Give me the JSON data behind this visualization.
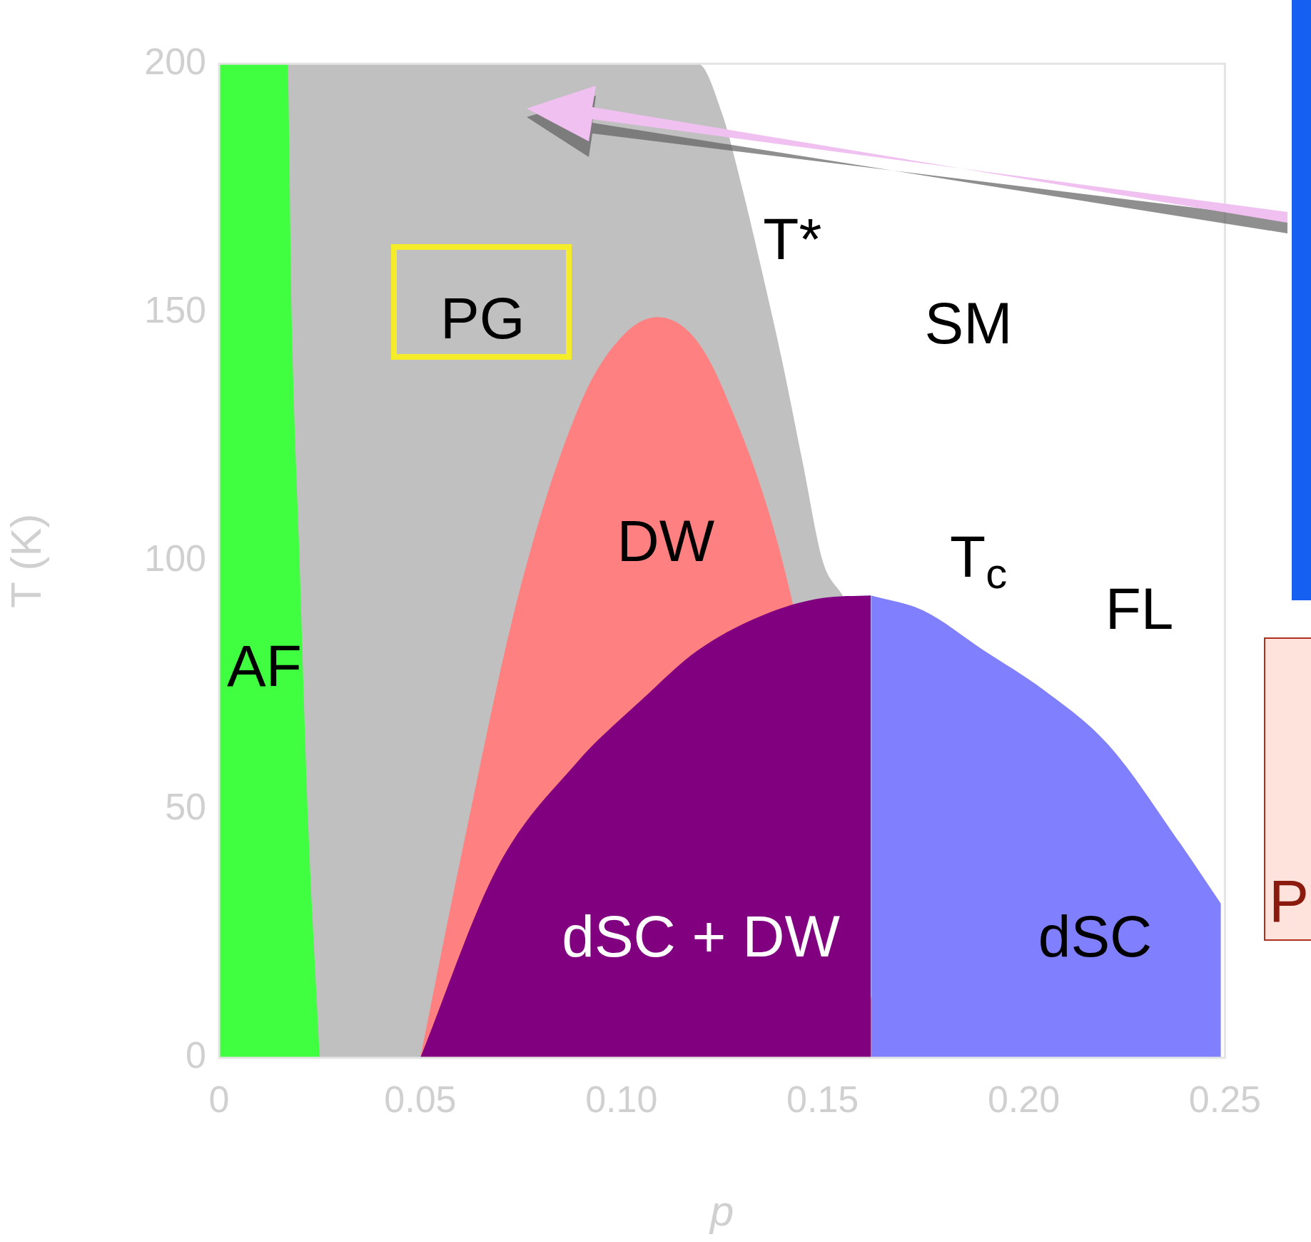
{
  "chart_data": {
    "type": "area",
    "xlabel": "p",
    "ylabel": "T (K)",
    "xlim": [
      0,
      0.25
    ],
    "ylim": [
      0,
      200
    ],
    "xticks": [
      0,
      0.05,
      {
        "value": 0.1,
        "label": "0.10"
      },
      0.15,
      {
        "value": 0.2,
        "label": "0.20"
      },
      0.25
    ],
    "yticks": [
      0,
      50,
      100,
      150,
      200
    ],
    "legend": false,
    "grid": false,
    "series": [
      {
        "color": "#c0c0c0",
        "x": [
          0,
          0.119,
          0.125,
          0.13,
          0.135,
          0.14,
          0.145,
          0.15,
          0.155
        ],
        "values": [
          200,
          200,
          190,
          175,
          158,
          140,
          120,
          100,
          93
        ]
      },
      {
        "color": "#40ff40",
        "x": [
          0,
          0.017,
          0.018,
          0.02,
          0.022,
          0.025
        ],
        "values": [
          200,
          200,
          150,
          100,
          50,
          0
        ]
      },
      {
        "color": "#ff8080",
        "x": [
          0.05,
          0.06,
          0.075,
          0.09,
          0.1,
          0.109,
          0.118,
          0.125,
          0.14,
          0.15,
          0.158,
          0.165
        ],
        "values": [
          0,
          40,
          95,
          132,
          145,
          149,
          145,
          135,
          100,
          null,
          null,
          0
        ]
      },
      {
        "color": "#800080",
        "x": [
          0.05,
          0.069,
          0.089,
          0.105,
          0.119,
          0.135,
          0.15,
          0.162
        ],
        "values": [
          0,
          38,
          59.5,
          72,
          82,
          89,
          92.5,
          93
        ]
      },
      {
        "color": "#8080ff",
        "x": [
          0.162,
          0.175,
          0.19,
          0.205,
          0.221,
          0.239,
          0.249
        ],
        "values": [
          93,
          90,
          82,
          74,
          63,
          43,
          31
        ]
      }
    ],
    "annotations": [
      "AF",
      "PG",
      "T*",
      "SM",
      "DW",
      "T$_{c}$",
      "FL",
      "dSC + DW",
      "dSC",
      "P"
    ]
  }
}
